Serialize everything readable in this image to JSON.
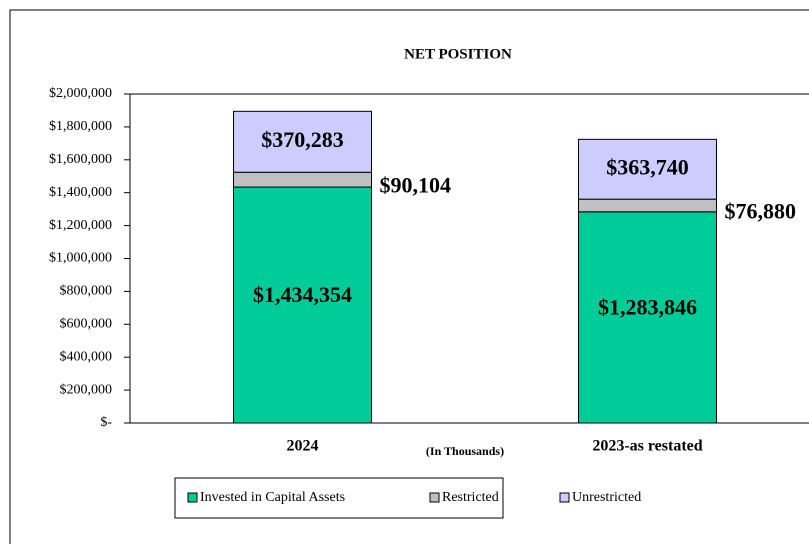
{
  "chart_data": {
    "type": "bar",
    "stacked": true,
    "title": "NET POSITION",
    "x_label": "(In Thousands)",
    "categories": [
      "2024",
      "2023-as restated"
    ],
    "series": [
      {
        "name": "Invested in Capital Assets",
        "color": "#00cc99",
        "values": [
          1434354,
          1283846
        ],
        "value_labels": [
          "$1,434,354",
          "$1,283,846"
        ]
      },
      {
        "name": "Restricted",
        "color": "#c0c0c0",
        "values": [
          90104,
          76880
        ],
        "value_labels": [
          "$90,104",
          "$76,880"
        ]
      },
      {
        "name": "Unrestricted",
        "color": "#ccccff",
        "values": [
          370283,
          363740
        ],
        "value_labels": [
          "$370,283",
          "$363,740"
        ]
      }
    ],
    "ylim": [
      0,
      2000000
    ],
    "yticks": [
      {
        "value": 0,
        "label": "$-"
      },
      {
        "value": 200000,
        "label": "$200,000"
      },
      {
        "value": 400000,
        "label": "$400,000"
      },
      {
        "value": 600000,
        "label": "$600,000"
      },
      {
        "value": 800000,
        "label": "$800,000"
      },
      {
        "value": 1000000,
        "label": "$1,000,000"
      },
      {
        "value": 1200000,
        "label": "$1,200,000"
      },
      {
        "value": 1400000,
        "label": "$1,400,000"
      },
      {
        "value": 1600000,
        "label": "$1,600,000"
      },
      {
        "value": 1800000,
        "label": "$1,800,000"
      },
      {
        "value": 2000000,
        "label": "$2,000,000"
      }
    ],
    "grid": false,
    "legend": "bottom"
  }
}
